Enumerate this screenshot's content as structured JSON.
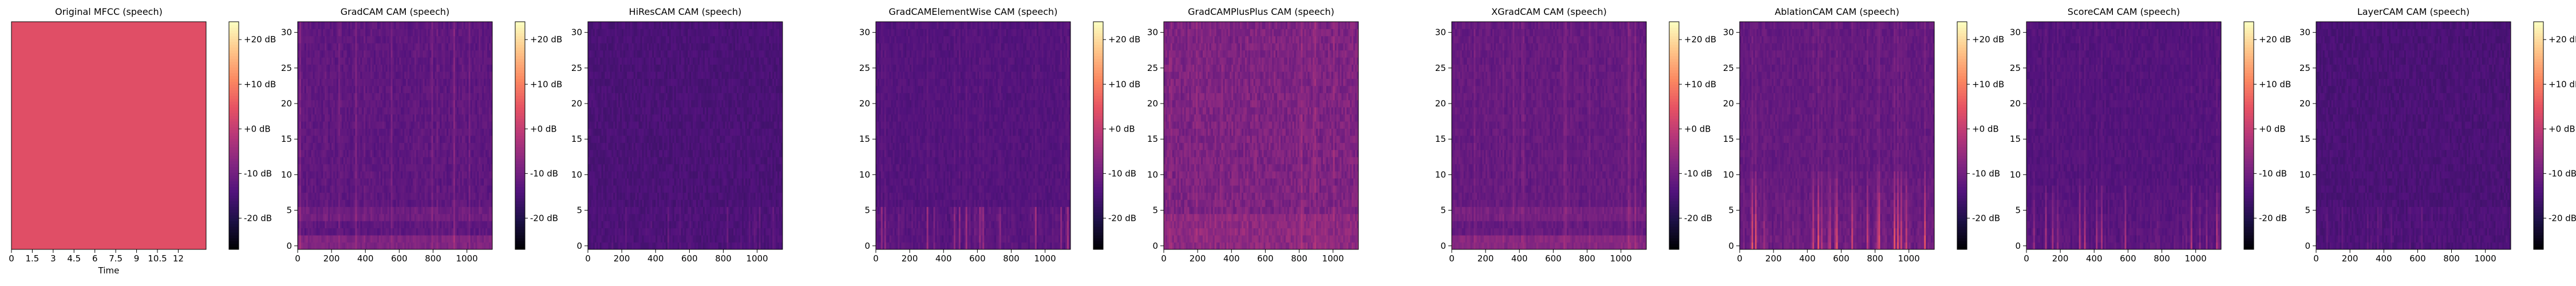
{
  "colorbar": {
    "tick_labels": [
      "+20 dB",
      "+10 dB",
      "+0 dB",
      "-10 dB",
      "-20 dB"
    ],
    "tick_values": [
      20,
      10,
      0,
      -10,
      -20
    ],
    "range": [
      -27,
      24
    ],
    "colormap": [
      "#000004",
      "#1d1147",
      "#51127c",
      "#832681",
      "#b73779",
      "#e75263",
      "#fc8961",
      "#fec488",
      "#fcfdbf"
    ]
  },
  "chart_data": [
    {
      "type": "heatmap",
      "title": "Original MFCC (speech)",
      "xlabel": "Time",
      "ylabel": "",
      "xlim": [
        0,
        14
      ],
      "ylim": [
        0,
        1
      ],
      "x_ticks": [
        0,
        1.5,
        3,
        4.5,
        6,
        7.5,
        9,
        10.5,
        12
      ],
      "x_tick_labels": [
        "0",
        "1.5",
        "3",
        "4.5",
        "6",
        "7.5",
        "9",
        "10.5",
        "12"
      ],
      "y_ticks": [],
      "y_tick_labels": [],
      "approx_level_db": 4,
      "pattern": "uniform",
      "colorbar": true
    },
    {
      "type": "heatmap",
      "title": "GradCAM CAM (speech)",
      "xlabel": "",
      "ylabel": "",
      "xlim": [
        0,
        1150
      ],
      "ylim": [
        -0.5,
        31.5
      ],
      "x_ticks": [
        0,
        200,
        400,
        600,
        800,
        1000
      ],
      "x_tick_labels": [
        "0",
        "200",
        "400",
        "600",
        "800",
        "1000"
      ],
      "y_ticks": [
        0,
        5,
        10,
        15,
        20,
        25,
        30
      ],
      "y_tick_labels": [
        "0",
        "5",
        "10",
        "15",
        "20",
        "25",
        "30"
      ],
      "approx_level_db": -13,
      "pattern": "streaks_low_rows",
      "colorbar": true
    },
    {
      "type": "heatmap",
      "title": "HiResCAM CAM (speech)",
      "xlabel": "",
      "ylabel": "",
      "xlim": [
        0,
        1150
      ],
      "ylim": [
        -0.5,
        31.5
      ],
      "x_ticks": [
        0,
        200,
        400,
        600,
        800,
        1000
      ],
      "x_tick_labels": [
        "0",
        "200",
        "400",
        "600",
        "800",
        "1000"
      ],
      "y_ticks": [
        0,
        5,
        10,
        15,
        20,
        25,
        30
      ],
      "y_tick_labels": [
        "0",
        "5",
        "10",
        "15",
        "20",
        "25",
        "30"
      ],
      "approx_level_db": -15,
      "pattern": "faint",
      "colorbar": false
    },
    {
      "type": "heatmap",
      "title": "GradCAMElementWise CAM (speech)",
      "xlabel": "",
      "ylabel": "",
      "xlim": [
        0,
        1150
      ],
      "ylim": [
        -0.5,
        31.5
      ],
      "x_ticks": [
        0,
        200,
        400,
        600,
        800,
        1000
      ],
      "x_tick_labels": [
        "0",
        "200",
        "400",
        "600",
        "800",
        "1000"
      ],
      "y_ticks": [
        0,
        5,
        10,
        15,
        20,
        25,
        30
      ],
      "y_tick_labels": [
        "0",
        "5",
        "10",
        "15",
        "20",
        "25",
        "30"
      ],
      "approx_level_db": -14,
      "pattern": "sparse_low",
      "colorbar": true
    },
    {
      "type": "heatmap",
      "title": "GradCAMPlusPlus CAM (speech)",
      "xlabel": "",
      "ylabel": "",
      "xlim": [
        0,
        1150
      ],
      "ylim": [
        -0.5,
        31.5
      ],
      "x_ticks": [
        0,
        200,
        400,
        600,
        800,
        1000
      ],
      "x_tick_labels": [
        "0",
        "200",
        "400",
        "600",
        "800",
        "1000"
      ],
      "y_ticks": [
        0,
        5,
        10,
        15,
        20,
        25,
        30
      ],
      "y_tick_labels": [
        "0",
        "5",
        "10",
        "15",
        "20",
        "25",
        "30"
      ],
      "approx_level_db": -9,
      "pattern": "dense",
      "colorbar": false
    },
    {
      "type": "heatmap",
      "title": "XGradCAM CAM (speech)",
      "xlabel": "",
      "ylabel": "",
      "xlim": [
        0,
        1150
      ],
      "ylim": [
        -0.5,
        31.5
      ],
      "x_ticks": [
        0,
        200,
        400,
        600,
        800,
        1000
      ],
      "x_tick_labels": [
        "0",
        "200",
        "400",
        "600",
        "800",
        "1000"
      ],
      "y_ticks": [
        0,
        5,
        10,
        15,
        20,
        25,
        30
      ],
      "y_tick_labels": [
        "0",
        "5",
        "10",
        "15",
        "20",
        "25",
        "30"
      ],
      "approx_level_db": -12,
      "pattern": "streaks_low_rows",
      "colorbar": true
    },
    {
      "type": "heatmap",
      "title": "AblationCAM CAM (speech)",
      "xlabel": "",
      "ylabel": "",
      "xlim": [
        0,
        1150
      ],
      "ylim": [
        -0.5,
        31.5
      ],
      "x_ticks": [
        0,
        200,
        400,
        600,
        800,
        1000
      ],
      "x_tick_labels": [
        "0",
        "200",
        "400",
        "600",
        "800",
        "1000"
      ],
      "y_ticks": [
        0,
        5,
        10,
        15,
        20,
        25,
        30
      ],
      "y_tick_labels": [
        "0",
        "5",
        "10",
        "15",
        "20",
        "25",
        "30"
      ],
      "approx_level_db": -12,
      "pattern": "strong_low",
      "colorbar": true
    },
    {
      "type": "heatmap",
      "title": "ScoreCAM CAM (speech)",
      "xlabel": "",
      "ylabel": "",
      "xlim": [
        0,
        1150
      ],
      "ylim": [
        -0.5,
        31.5
      ],
      "x_ticks": [
        0,
        200,
        400,
        600,
        800,
        1000
      ],
      "x_tick_labels": [
        "0",
        "200",
        "400",
        "600",
        "800",
        "1000"
      ],
      "y_ticks": [
        0,
        5,
        10,
        15,
        20,
        25,
        30
      ],
      "y_tick_labels": [
        "0",
        "5",
        "10",
        "15",
        "20",
        "25",
        "30"
      ],
      "approx_level_db": -14,
      "pattern": "medium_low",
      "colorbar": true
    },
    {
      "type": "heatmap",
      "title": "LayerCAM CAM (speech)",
      "xlabel": "",
      "ylabel": "",
      "xlim": [
        0,
        1150
      ],
      "ylim": [
        -0.5,
        31.5
      ],
      "x_ticks": [
        0,
        200,
        400,
        600,
        800,
        1000
      ],
      "x_tick_labels": [
        "0",
        "200",
        "400",
        "600",
        "800",
        "1000"
      ],
      "y_ticks": [
        0,
        5,
        10,
        15,
        20,
        25,
        30
      ],
      "y_tick_labels": [
        "0",
        "5",
        "10",
        "15",
        "20",
        "25",
        "30"
      ],
      "approx_level_db": -15,
      "pattern": "faint",
      "colorbar": true
    }
  ]
}
